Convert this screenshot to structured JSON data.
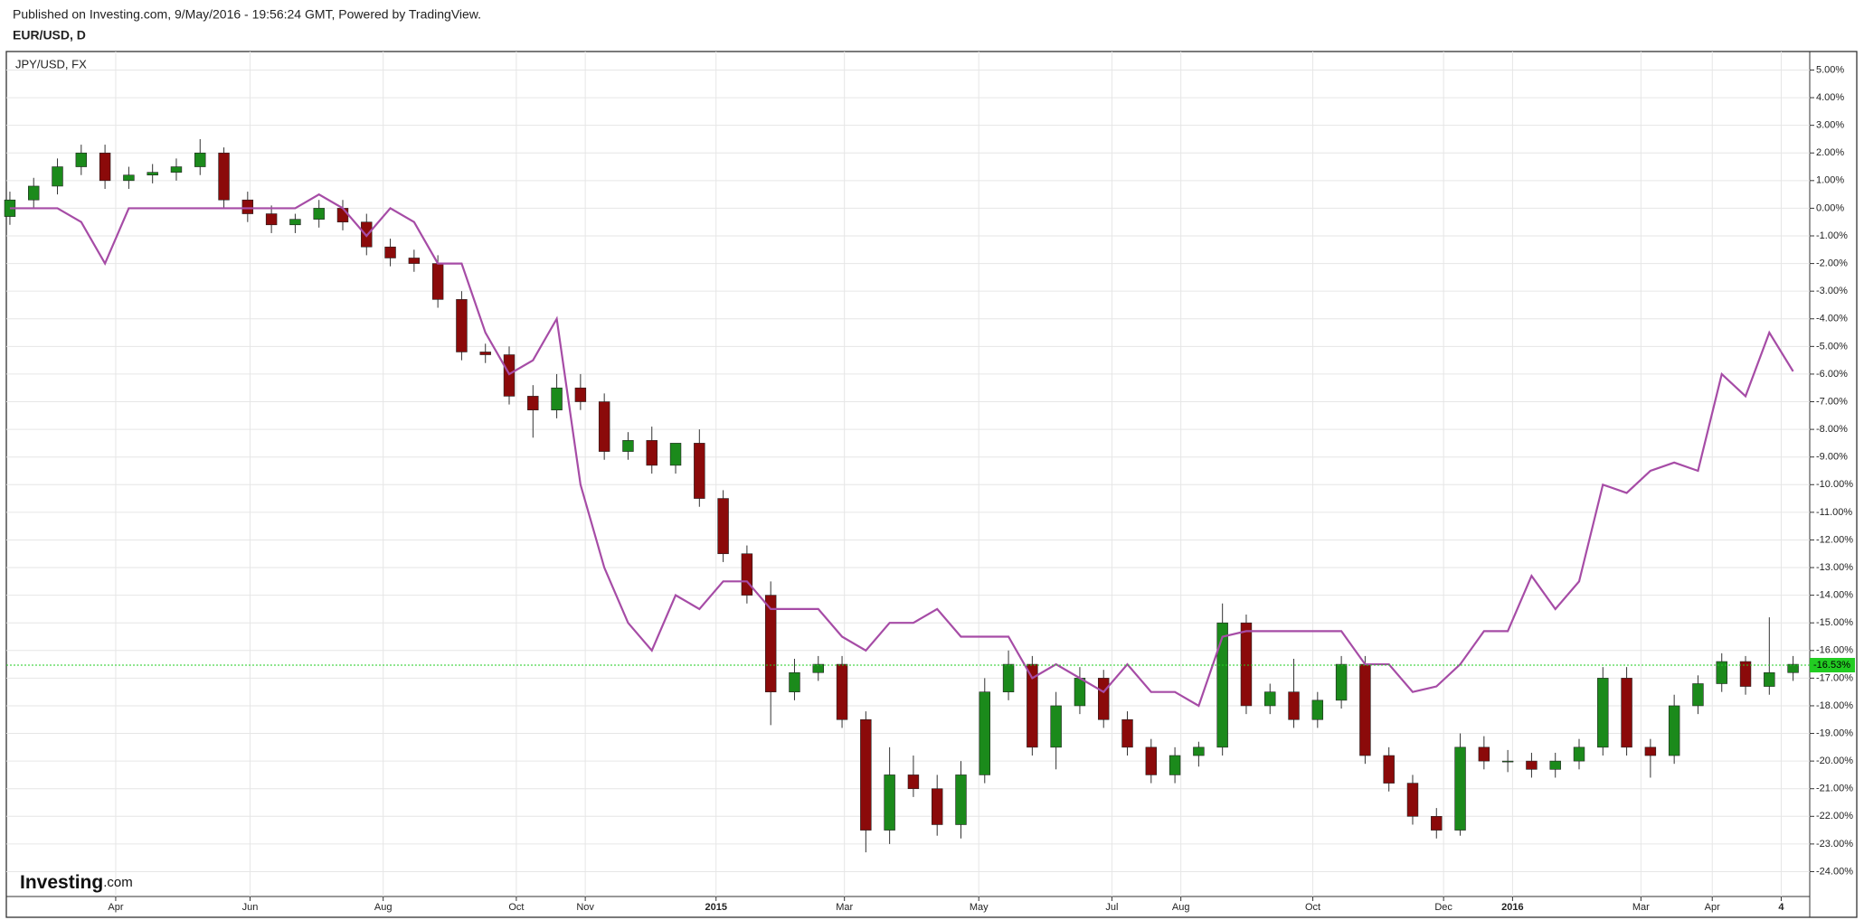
{
  "header": {
    "published": "Published on Investing.com, 9/May/2016 - 19:56:24 GMT, Powered by TradingView.",
    "symbol": "EUR/USD, D"
  },
  "logo": {
    "brand": "Investing",
    "suffix": ".com"
  },
  "chart_data": {
    "type": "candlestick",
    "legend_label": "JPY/USD, FX",
    "x": [
      0,
      1,
      2,
      3,
      4,
      5,
      6,
      7,
      8,
      9,
      10,
      11,
      12,
      13,
      14,
      15,
      16,
      17,
      18,
      19,
      20,
      21,
      22,
      23,
      24,
      25,
      26,
      27,
      28,
      29,
      30,
      31,
      32,
      33,
      34,
      35,
      36,
      37,
      38,
      39,
      40,
      41,
      42,
      43,
      44,
      45,
      46,
      47,
      48,
      49,
      50,
      51,
      52,
      53,
      54,
      55,
      56,
      57,
      58,
      59,
      60,
      61,
      62,
      63,
      64,
      65,
      66,
      67,
      68,
      69,
      70,
      71,
      72,
      73,
      74,
      75
    ],
    "open": [
      -0.3,
      0.3,
      0.8,
      1.5,
      2.0,
      1.0,
      1.2,
      1.3,
      1.5,
      2.0,
      0.3,
      -0.2,
      -0.6,
      -0.4,
      0.0,
      -0.5,
      -1.4,
      -1.8,
      -2.0,
      -3.3,
      -5.2,
      -5.3,
      -6.8,
      -7.3,
      -6.5,
      -7.0,
      -8.8,
      -8.4,
      -9.3,
      -8.5,
      -10.5,
      -12.5,
      -14.0,
      -17.5,
      -16.8,
      -16.5,
      -18.5,
      -22.5,
      -20.5,
      -21.0,
      -22.3,
      -20.5,
      -17.5,
      -16.5,
      -19.5,
      -18.0,
      -17.0,
      -18.5,
      -19.5,
      -20.5,
      -19.8,
      -19.5,
      -15.0,
      -18.0,
      -17.5,
      -18.5,
      -17.8,
      -16.5,
      -19.8,
      -20.8,
      -22.0,
      -22.5,
      -19.5,
      -20.0,
      -20.0,
      -20.3,
      -20.0,
      -19.5,
      -17.0,
      -19.5,
      -19.8,
      -18.0,
      -17.2,
      -16.4,
      -17.3,
      -16.8
    ],
    "high": [
      0.6,
      1.1,
      1.8,
      2.3,
      2.3,
      1.5,
      1.6,
      1.8,
      2.5,
      2.2,
      0.6,
      0.1,
      -0.2,
      0.3,
      0.3,
      -0.2,
      -1.1,
      -1.5,
      -1.7,
      -3.0,
      -4.9,
      -5.0,
      -6.4,
      -6.0,
      -6.0,
      -6.7,
      -8.1,
      -7.9,
      -8.7,
      -8.0,
      -10.2,
      -12.2,
      -13.5,
      -16.3,
      -16.2,
      -16.2,
      -18.2,
      -19.5,
      -19.8,
      -20.5,
      -20.0,
      -17.0,
      -16.0,
      -16.2,
      -17.5,
      -16.6,
      -16.7,
      -18.2,
      -19.2,
      -19.5,
      -19.3,
      -14.3,
      -14.7,
      -17.2,
      -16.3,
      -17.5,
      -16.2,
      -16.2,
      -19.5,
      -20.5,
      -21.7,
      -19.0,
      -19.1,
      -19.6,
      -19.7,
      -19.7,
      -19.2,
      -16.6,
      -16.6,
      -19.2,
      -17.6,
      -16.9,
      -16.1,
      -16.2,
      -14.8,
      -16.2
    ],
    "low": [
      -0.6,
      0.0,
      0.5,
      1.2,
      0.7,
      0.7,
      0.9,
      1.0,
      1.2,
      0.0,
      -0.5,
      -0.9,
      -0.9,
      -0.7,
      -0.8,
      -1.7,
      -2.1,
      -2.3,
      -3.6,
      -5.5,
      -5.6,
      -7.1,
      -8.3,
      -7.6,
      -7.3,
      -9.1,
      -9.1,
      -9.6,
      -9.6,
      -10.8,
      -12.8,
      -14.3,
      -18.7,
      -17.8,
      -17.1,
      -18.8,
      -23.3,
      -23.0,
      -21.3,
      -22.7,
      -22.8,
      -20.8,
      -17.8,
      -19.8,
      -20.3,
      -18.3,
      -18.8,
      -19.8,
      -20.8,
      -20.8,
      -20.2,
      -19.8,
      -18.3,
      -18.3,
      -18.8,
      -18.8,
      -18.1,
      -20.1,
      -21.1,
      -22.3,
      -22.8,
      -22.7,
      -20.3,
      -20.4,
      -20.6,
      -20.6,
      -20.3,
      -19.8,
      -19.8,
      -20.6,
      -20.1,
      -18.3,
      -17.5,
      -17.6,
      -17.6,
      -17.1
    ],
    "close": [
      0.3,
      0.8,
      1.5,
      2.0,
      1.0,
      1.2,
      1.3,
      1.5,
      2.0,
      0.3,
      -0.2,
      -0.6,
      -0.4,
      0.0,
      -0.5,
      -1.4,
      -1.8,
      -2.0,
      -3.3,
      -5.2,
      -5.3,
      -6.8,
      -7.3,
      -6.5,
      -7.0,
      -8.8,
      -8.4,
      -9.3,
      -8.5,
      -10.5,
      -12.5,
      -14.0,
      -17.5,
      -16.8,
      -16.5,
      -18.5,
      -22.5,
      -20.5,
      -21.0,
      -22.3,
      -20.5,
      -17.5,
      -16.5,
      -19.5,
      -18.0,
      -17.0,
      -18.5,
      -19.5,
      -20.5,
      -19.8,
      -19.5,
      -15.0,
      -18.0,
      -17.5,
      -18.5,
      -17.8,
      -16.5,
      -19.8,
      -20.8,
      -22.0,
      -22.5,
      -19.5,
      -20.0,
      -20.0,
      -20.3,
      -20.0,
      -19.5,
      -17.0,
      -19.5,
      -19.8,
      -18.0,
      -17.2,
      -16.4,
      -17.3,
      -16.8,
      -16.5
    ],
    "up_color": "#1b8a1b",
    "down_color": "#8b0a0a",
    "series": [
      {
        "name": "JPY/USD",
        "color": "#a64ca6",
        "values": [
          0,
          0,
          0,
          -0.5,
          -2,
          0,
          0,
          0,
          0,
          0,
          0,
          0,
          0,
          0.5,
          0,
          -1,
          0,
          -0.5,
          -2,
          -2,
          -4.5,
          -6,
          -5.5,
          -4,
          -10,
          -13,
          -15,
          -16,
          -14,
          -14.5,
          -13.5,
          -13.5,
          -14.5,
          -14.5,
          -14.5,
          -15.5,
          -16,
          -15,
          -15,
          -14.5,
          -15.5,
          -15.5,
          -15.5,
          -17,
          -16.5,
          -17,
          -17.5,
          -16.5,
          -17.5,
          -17.5,
          -18,
          -15.5,
          -15.3,
          -15.3,
          -15.3,
          -15.3,
          -15.3,
          -16.5,
          -16.5,
          -17.5,
          -17.3,
          -16.5,
          -15.3,
          -15.3,
          -13.3,
          -14.5,
          -13.5,
          -10,
          -10.3,
          -9.5,
          -9.2,
          -9.5,
          -6,
          -6.8,
          -4.5,
          -5.9
        ]
      }
    ],
    "last": {
      "value": -16.53,
      "label": "-16.53%"
    },
    "last_color": "#22cc22",
    "xlim": [
      -0.15,
      75.7
    ],
    "xticks": [
      {
        "value": 4.45,
        "label": "Apr"
      },
      {
        "value": 10.1,
        "label": "Jun"
      },
      {
        "value": 15.7,
        "label": "Aug"
      },
      {
        "value": 21.3,
        "label": "Oct"
      },
      {
        "value": 24.2,
        "label": "Nov"
      },
      {
        "value": 29.7,
        "label": "2015"
      },
      {
        "value": 35.1,
        "label": "Mar"
      },
      {
        "value": 40.75,
        "label": "May"
      },
      {
        "value": 46.35,
        "label": "Jul"
      },
      {
        "value": 49.25,
        "label": "Aug"
      },
      {
        "value": 54.8,
        "label": "Oct"
      },
      {
        "value": 60.3,
        "label": "Dec"
      },
      {
        "value": 63.2,
        "label": "2016"
      },
      {
        "value": 68.6,
        "label": "Mar"
      },
      {
        "value": 71.6,
        "label": "Apr"
      },
      {
        "value": 74.5,
        "label": "4"
      }
    ],
    "ylim": [
      -24.9,
      5.67
    ],
    "yticks": [
      {
        "value": 5,
        "label": "5.00%"
      },
      {
        "value": 4,
        "label": "4.00%"
      },
      {
        "value": 3,
        "label": "3.00%"
      },
      {
        "value": 2,
        "label": "2.00%"
      },
      {
        "value": 1,
        "label": "1.00%"
      },
      {
        "value": 0,
        "label": "0.00%"
      },
      {
        "value": -1,
        "label": "-1.00%"
      },
      {
        "value": -2,
        "label": "-2.00%"
      },
      {
        "value": -3,
        "label": "-3.00%"
      },
      {
        "value": -4,
        "label": "-4.00%"
      },
      {
        "value": -5,
        "label": "-5.00%"
      },
      {
        "value": -6,
        "label": "-6.00%"
      },
      {
        "value": -7,
        "label": "-7.00%"
      },
      {
        "value": -8,
        "label": "-8.00%"
      },
      {
        "value": -9,
        "label": "-9.00%"
      },
      {
        "value": -10,
        "label": "-10.00%"
      },
      {
        "value": -11,
        "label": "-11.00%"
      },
      {
        "value": -12,
        "label": "-12.00%"
      },
      {
        "value": -13,
        "label": "-13.00%"
      },
      {
        "value": -14,
        "label": "-14.00%"
      },
      {
        "value": -15,
        "label": "-15.00%"
      },
      {
        "value": -16,
        "label": "-16.00%"
      },
      {
        "value": -17,
        "label": "-17.00%"
      },
      {
        "value": -18,
        "label": "-18.00%"
      },
      {
        "value": -19,
        "label": "-19.00%"
      },
      {
        "value": -20,
        "label": "-20.00%"
      },
      {
        "value": -21,
        "label": "-21.00%"
      },
      {
        "value": -22,
        "label": "-22.00%"
      },
      {
        "value": -23,
        "label": "-23.00%"
      },
      {
        "value": -24,
        "label": "-24.00%"
      }
    ],
    "grid": true
  }
}
